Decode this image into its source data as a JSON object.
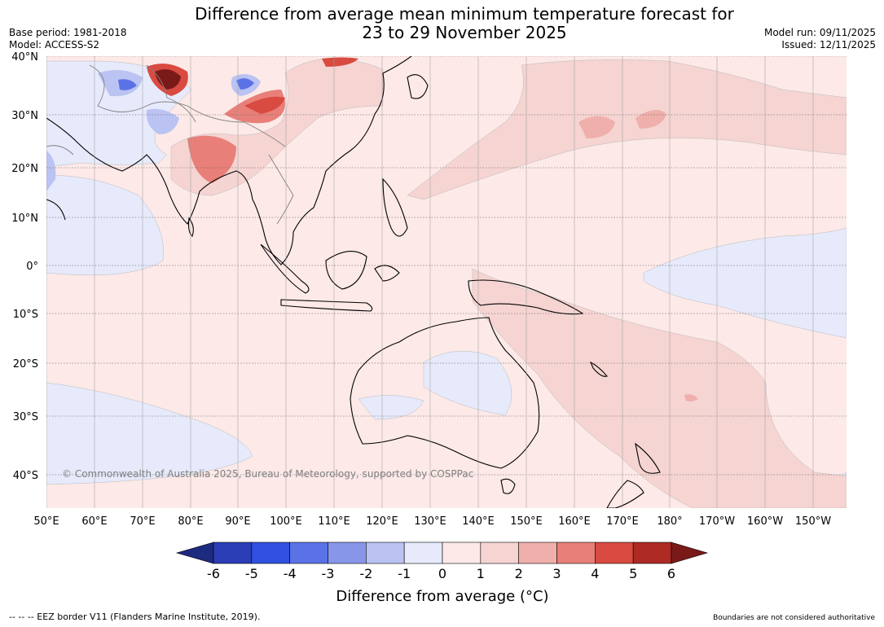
{
  "header": {
    "title_line1": "Difference from average mean minimum temperature forecast for",
    "title_line2": "23 to 29 November 2025",
    "base_period": "Base period: 1981-2018",
    "model": "Model: ACCESS-S2",
    "model_run": "Model run: 09/11/2025",
    "issued": "Issued: 12/11/2025"
  },
  "map": {
    "lat_labels": [
      "40°N",
      "30°N",
      "20°N",
      "10°N",
      "0°",
      "10°S",
      "20°S",
      "30°S",
      "40°S"
    ],
    "lon_labels": [
      "50°E",
      "60°E",
      "70°E",
      "80°E",
      "90°E",
      "100°E",
      "110°E",
      "120°E",
      "130°E",
      "140°E",
      "150°E",
      "160°E",
      "170°E",
      "180°",
      "170°W",
      "160°W",
      "150°W"
    ],
    "copyright": "© Commonwealth of Australia 2025, Bureau of Meteorology, supported by COSPPac"
  },
  "legend": {
    "title": "Difference from average (°C)",
    "ticks": [
      "-6",
      "-5",
      "-4",
      "-3",
      "-2",
      "-1",
      "0",
      "1",
      "2",
      "3",
      "4",
      "5",
      "6"
    ],
    "colors": [
      "#1c2a80",
      "#2a3db5",
      "#3051e0",
      "#5b72e6",
      "#8896ea",
      "#bac3f2",
      "#e6eafb",
      "#fce9e8",
      "#f5d4d2",
      "#efafab",
      "#e88079",
      "#d94a40",
      "#ad2a25",
      "#7a1a18"
    ]
  },
  "footer": {
    "eez_note": "--  --  -- EEZ border V11 (Flanders Marine Institute, 2019).",
    "boundary_note": "Boundaries are not considered authoritative"
  }
}
